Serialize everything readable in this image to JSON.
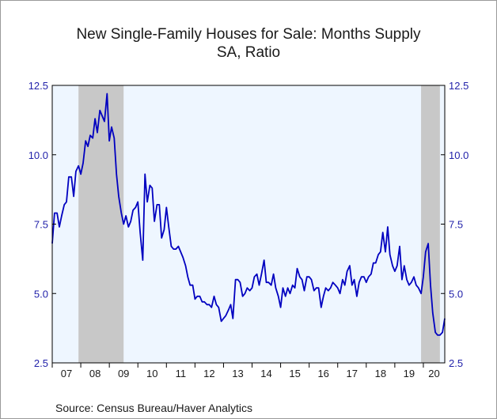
{
  "chart_data": {
    "type": "line",
    "title": "New Single-Family Houses for Sale: Months Supply",
    "subtitle": "SA, Ratio",
    "source": "Source:  Census Bureau/Haver Analytics",
    "ylim": [
      2.5,
      12.5
    ],
    "y_ticks": [
      "12.5",
      "10.0",
      "7.5",
      "5.0",
      "2.5"
    ],
    "x_tick_labels": [
      "07",
      "08",
      "09",
      "10",
      "11",
      "12",
      "13",
      "14",
      "15",
      "16",
      "17",
      "18",
      "19",
      "20"
    ],
    "xlim": [
      2007.0,
      2020.75
    ],
    "grid": false,
    "recessions": [
      [
        2007.92,
        2009.5
      ],
      [
        2019.92,
        2020.58
      ]
    ],
    "colors": {
      "plot_bg": "#eef6ff",
      "recession": "#c8c8c8",
      "line": "#0000c0",
      "axis": "#000000",
      "tick_label": "#2222aa"
    },
    "series": [
      {
        "values": [
          [
            2007.0,
            6.8
          ],
          [
            2007.08,
            7.9
          ],
          [
            2007.17,
            7.9
          ],
          [
            2007.25,
            7.4
          ],
          [
            2007.33,
            7.8
          ],
          [
            2007.42,
            8.2
          ],
          [
            2007.5,
            8.3
          ],
          [
            2007.58,
            9.2
          ],
          [
            2007.67,
            9.2
          ],
          [
            2007.75,
            8.5
          ],
          [
            2007.83,
            9.4
          ],
          [
            2007.92,
            9.6
          ],
          [
            2008.0,
            9.3
          ],
          [
            2008.08,
            9.7
          ],
          [
            2008.17,
            10.5
          ],
          [
            2008.25,
            10.3
          ],
          [
            2008.33,
            10.7
          ],
          [
            2008.42,
            10.6
          ],
          [
            2008.5,
            11.3
          ],
          [
            2008.58,
            10.8
          ],
          [
            2008.67,
            11.6
          ],
          [
            2008.75,
            11.4
          ],
          [
            2008.83,
            11.2
          ],
          [
            2008.92,
            12.2
          ],
          [
            2009.0,
            10.5
          ],
          [
            2009.08,
            11.0
          ],
          [
            2009.17,
            10.6
          ],
          [
            2009.25,
            9.3
          ],
          [
            2009.33,
            8.5
          ],
          [
            2009.42,
            7.9
          ],
          [
            2009.5,
            7.5
          ],
          [
            2009.58,
            7.8
          ],
          [
            2009.67,
            7.4
          ],
          [
            2009.75,
            7.6
          ],
          [
            2009.83,
            8.0
          ],
          [
            2009.92,
            8.1
          ],
          [
            2010.0,
            8.3
          ],
          [
            2010.08,
            7.2
          ],
          [
            2010.17,
            6.2
          ],
          [
            2010.25,
            9.3
          ],
          [
            2010.33,
            8.3
          ],
          [
            2010.42,
            8.9
          ],
          [
            2010.5,
            8.8
          ],
          [
            2010.58,
            7.6
          ],
          [
            2010.67,
            8.2
          ],
          [
            2010.75,
            8.2
          ],
          [
            2010.83,
            7.0
          ],
          [
            2010.92,
            7.3
          ],
          [
            2011.0,
            8.1
          ],
          [
            2011.08,
            7.4
          ],
          [
            2011.17,
            6.7
          ],
          [
            2011.25,
            6.6
          ],
          [
            2011.33,
            6.6
          ],
          [
            2011.42,
            6.7
          ],
          [
            2011.5,
            6.5
          ],
          [
            2011.58,
            6.3
          ],
          [
            2011.67,
            6.0
          ],
          [
            2011.75,
            5.6
          ],
          [
            2011.83,
            5.3
          ],
          [
            2011.92,
            5.3
          ],
          [
            2012.0,
            4.8
          ],
          [
            2012.08,
            4.9
          ],
          [
            2012.17,
            4.9
          ],
          [
            2012.25,
            4.7
          ],
          [
            2012.33,
            4.7
          ],
          [
            2012.42,
            4.6
          ],
          [
            2012.5,
            4.6
          ],
          [
            2012.58,
            4.5
          ],
          [
            2012.67,
            4.9
          ],
          [
            2012.75,
            4.6
          ],
          [
            2012.83,
            4.5
          ],
          [
            2012.92,
            4.0
          ],
          [
            2013.0,
            4.1
          ],
          [
            2013.08,
            4.2
          ],
          [
            2013.17,
            4.4
          ],
          [
            2013.25,
            4.6
          ],
          [
            2013.33,
            4.1
          ],
          [
            2013.42,
            5.5
          ],
          [
            2013.5,
            5.5
          ],
          [
            2013.58,
            5.4
          ],
          [
            2013.67,
            4.9
          ],
          [
            2013.75,
            5.0
          ],
          [
            2013.83,
            5.2
          ],
          [
            2013.92,
            5.1
          ],
          [
            2014.0,
            5.2
          ],
          [
            2014.08,
            5.6
          ],
          [
            2014.17,
            5.7
          ],
          [
            2014.25,
            5.3
          ],
          [
            2014.33,
            5.7
          ],
          [
            2014.42,
            6.2
          ],
          [
            2014.5,
            5.4
          ],
          [
            2014.58,
            5.4
          ],
          [
            2014.67,
            5.3
          ],
          [
            2014.75,
            5.7
          ],
          [
            2014.83,
            5.2
          ],
          [
            2014.92,
            4.9
          ],
          [
            2015.0,
            4.5
          ],
          [
            2015.08,
            5.2
          ],
          [
            2015.17,
            4.9
          ],
          [
            2015.25,
            5.2
          ],
          [
            2015.33,
            5.0
          ],
          [
            2015.42,
            5.3
          ],
          [
            2015.5,
            5.2
          ],
          [
            2015.58,
            5.9
          ],
          [
            2015.67,
            5.6
          ],
          [
            2015.75,
            5.5
          ],
          [
            2015.83,
            5.1
          ],
          [
            2015.92,
            5.6
          ],
          [
            2016.0,
            5.6
          ],
          [
            2016.08,
            5.5
          ],
          [
            2016.17,
            5.1
          ],
          [
            2016.25,
            5.2
          ],
          [
            2016.33,
            5.2
          ],
          [
            2016.42,
            4.5
          ],
          [
            2016.5,
            4.9
          ],
          [
            2016.58,
            5.2
          ],
          [
            2016.67,
            5.1
          ],
          [
            2016.75,
            5.2
          ],
          [
            2016.83,
            5.4
          ],
          [
            2016.92,
            5.3
          ],
          [
            2017.0,
            5.2
          ],
          [
            2017.08,
            5.0
          ],
          [
            2017.17,
            5.5
          ],
          [
            2017.25,
            5.3
          ],
          [
            2017.33,
            5.8
          ],
          [
            2017.42,
            6.0
          ],
          [
            2017.5,
            5.3
          ],
          [
            2017.58,
            5.5
          ],
          [
            2017.67,
            4.9
          ],
          [
            2017.75,
            5.4
          ],
          [
            2017.83,
            5.6
          ],
          [
            2017.92,
            5.6
          ],
          [
            2018.0,
            5.4
          ],
          [
            2018.08,
            5.6
          ],
          [
            2018.17,
            5.7
          ],
          [
            2018.25,
            6.1
          ],
          [
            2018.33,
            6.1
          ],
          [
            2018.42,
            6.4
          ],
          [
            2018.5,
            6.5
          ],
          [
            2018.58,
            7.2
          ],
          [
            2018.67,
            6.5
          ],
          [
            2018.75,
            7.4
          ],
          [
            2018.83,
            6.4
          ],
          [
            2018.92,
            6.0
          ],
          [
            2019.0,
            5.8
          ],
          [
            2019.08,
            6.0
          ],
          [
            2019.17,
            6.7
          ],
          [
            2019.25,
            5.5
          ],
          [
            2019.33,
            6.0
          ],
          [
            2019.42,
            5.5
          ],
          [
            2019.5,
            5.3
          ],
          [
            2019.58,
            5.4
          ],
          [
            2019.67,
            5.6
          ],
          [
            2019.75,
            5.3
          ],
          [
            2019.83,
            5.2
          ],
          [
            2019.92,
            5.0
          ],
          [
            2020.0,
            5.6
          ],
          [
            2020.08,
            6.5
          ],
          [
            2020.17,
            6.8
          ],
          [
            2020.25,
            5.3
          ],
          [
            2020.33,
            4.3
          ],
          [
            2020.42,
            3.6
          ],
          [
            2020.5,
            3.5
          ],
          [
            2020.58,
            3.5
          ],
          [
            2020.67,
            3.6
          ],
          [
            2020.75,
            4.1
          ]
        ]
      }
    ]
  }
}
